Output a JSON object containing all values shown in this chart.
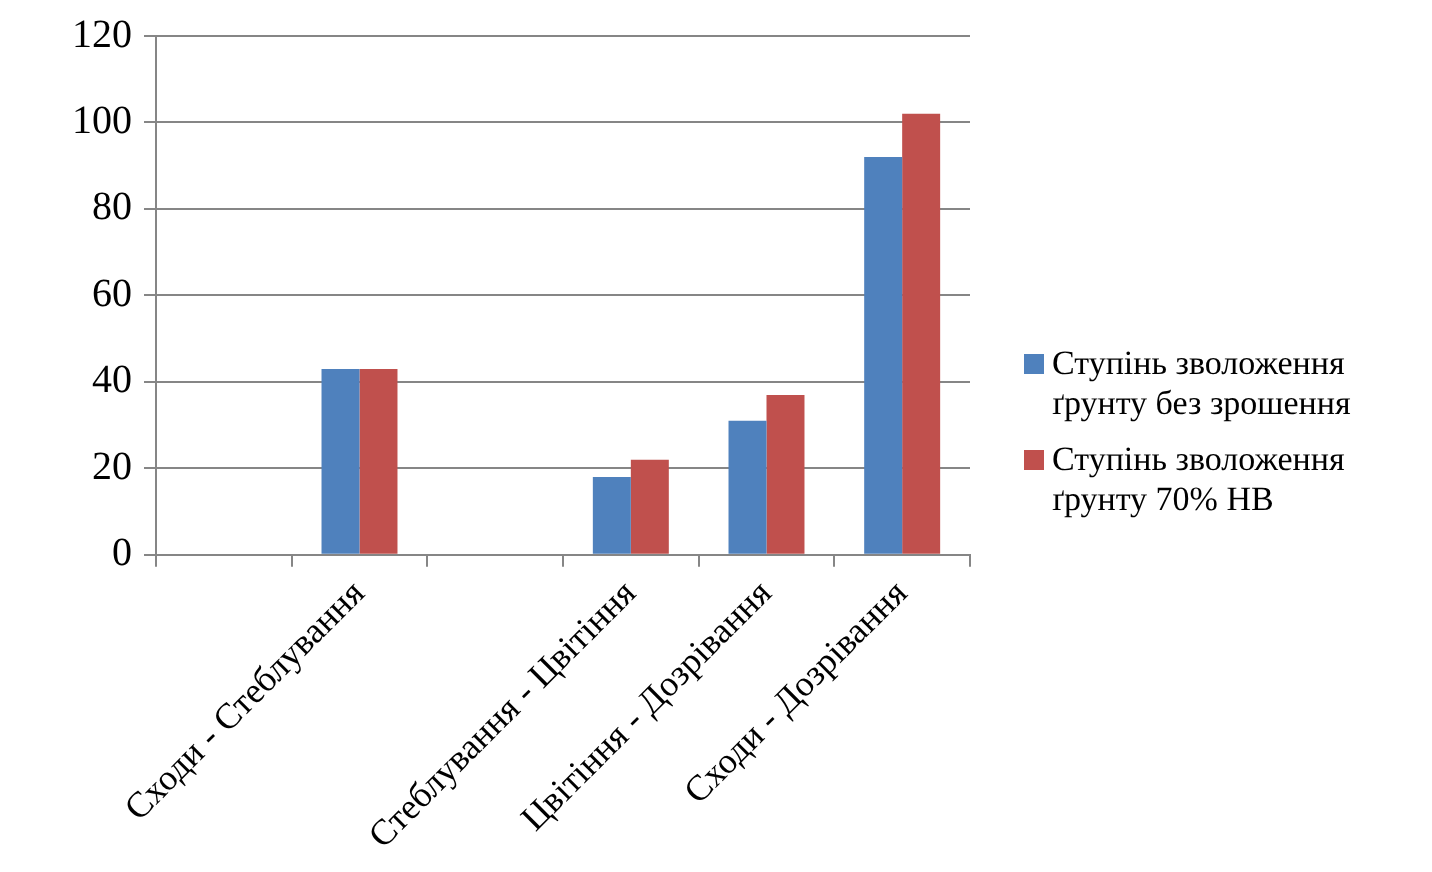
{
  "chart_data": {
    "type": "bar",
    "categories": [
      null,
      "Сходи - Стеблування",
      null,
      "Стеблування - Цвітіння",
      "Цвітіння - Дозрівання",
      "Сходи - Дозрівання"
    ],
    "series": [
      {
        "name": "Ступінь зволоження ґрунту без зрошення",
        "color": "#4f81bd",
        "values": [
          null,
          43,
          null,
          18,
          31,
          92
        ]
      },
      {
        "name": "Ступінь зволоження ґрунту 70% НВ",
        "color": "#c0504d",
        "values": [
          null,
          43,
          null,
          22,
          37,
          102
        ]
      }
    ],
    "ylim": [
      0,
      120
    ],
    "yticks": [
      0,
      20,
      40,
      60,
      80,
      100,
      120
    ],
    "grid": "y",
    "legend": "right"
  }
}
